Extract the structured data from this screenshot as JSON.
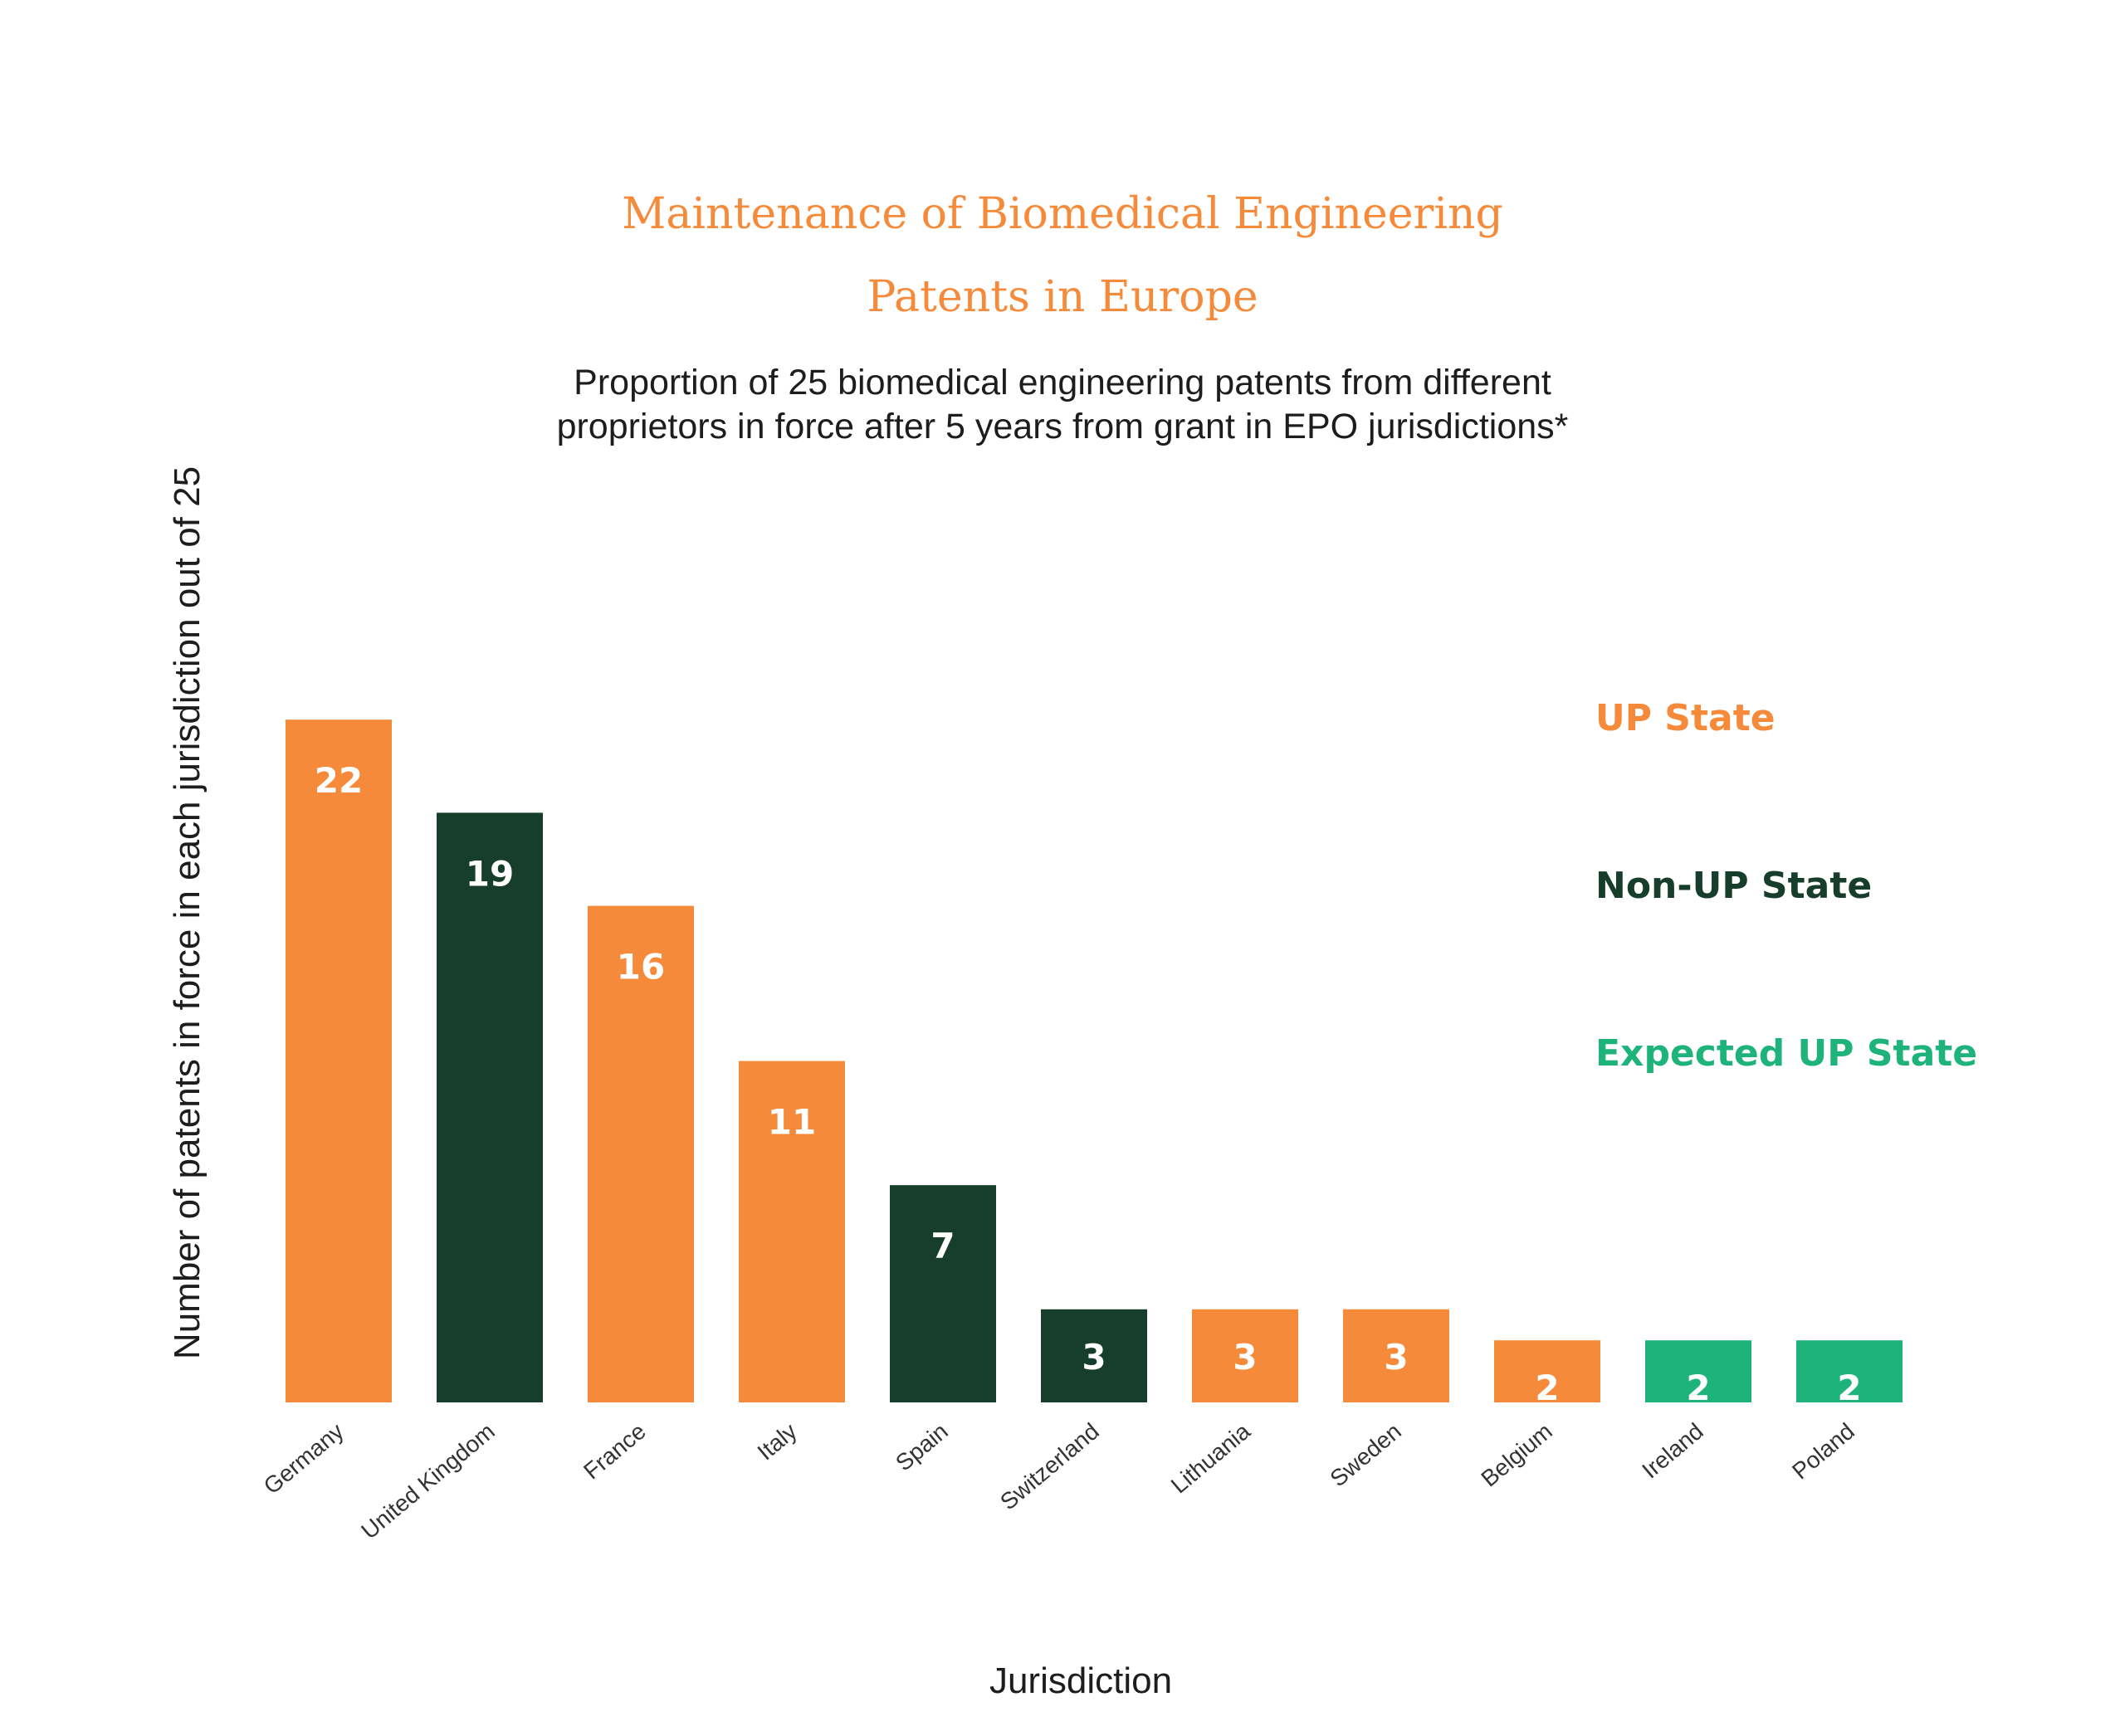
{
  "chart_data": {
    "type": "bar",
    "title_lines": [
      "Maintenance of Biomedical Engineering",
      "Patents in Europe"
    ],
    "subtitle_lines": [
      "Proportion of 25 biomedical engineering patents from different",
      "proprietors in force after 5 years from grant in EPO jurisdictions*"
    ],
    "xlabel": "Jurisdiction",
    "ylabel": "Number of patents in force in each jurisdiction out of 25",
    "ylim": [
      0,
      25
    ],
    "grid": false,
    "legend_position": "right",
    "categories": [
      "Germany",
      "United Kingdom",
      "France",
      "Italy",
      "Spain",
      "Switzerland",
      "Lithuania",
      "Sweden",
      "Belgium",
      "Ireland",
      "Poland"
    ],
    "values": [
      22,
      19,
      16,
      11,
      7,
      3,
      3,
      3,
      2,
      2,
      2
    ],
    "groups": [
      "UP State",
      "Non-UP State",
      "UP State",
      "UP State",
      "Non-UP State",
      "Non-UP State",
      "UP State",
      "UP State",
      "UP State",
      "Expected UP State",
      "Expected UP State"
    ],
    "legend": [
      {
        "name": "UP State",
        "color": "#f58b3a"
      },
      {
        "name": "Non-UP State",
        "color": "#173d2c"
      },
      {
        "name": "Expected UP State",
        "color": "#1fb37c"
      }
    ]
  }
}
